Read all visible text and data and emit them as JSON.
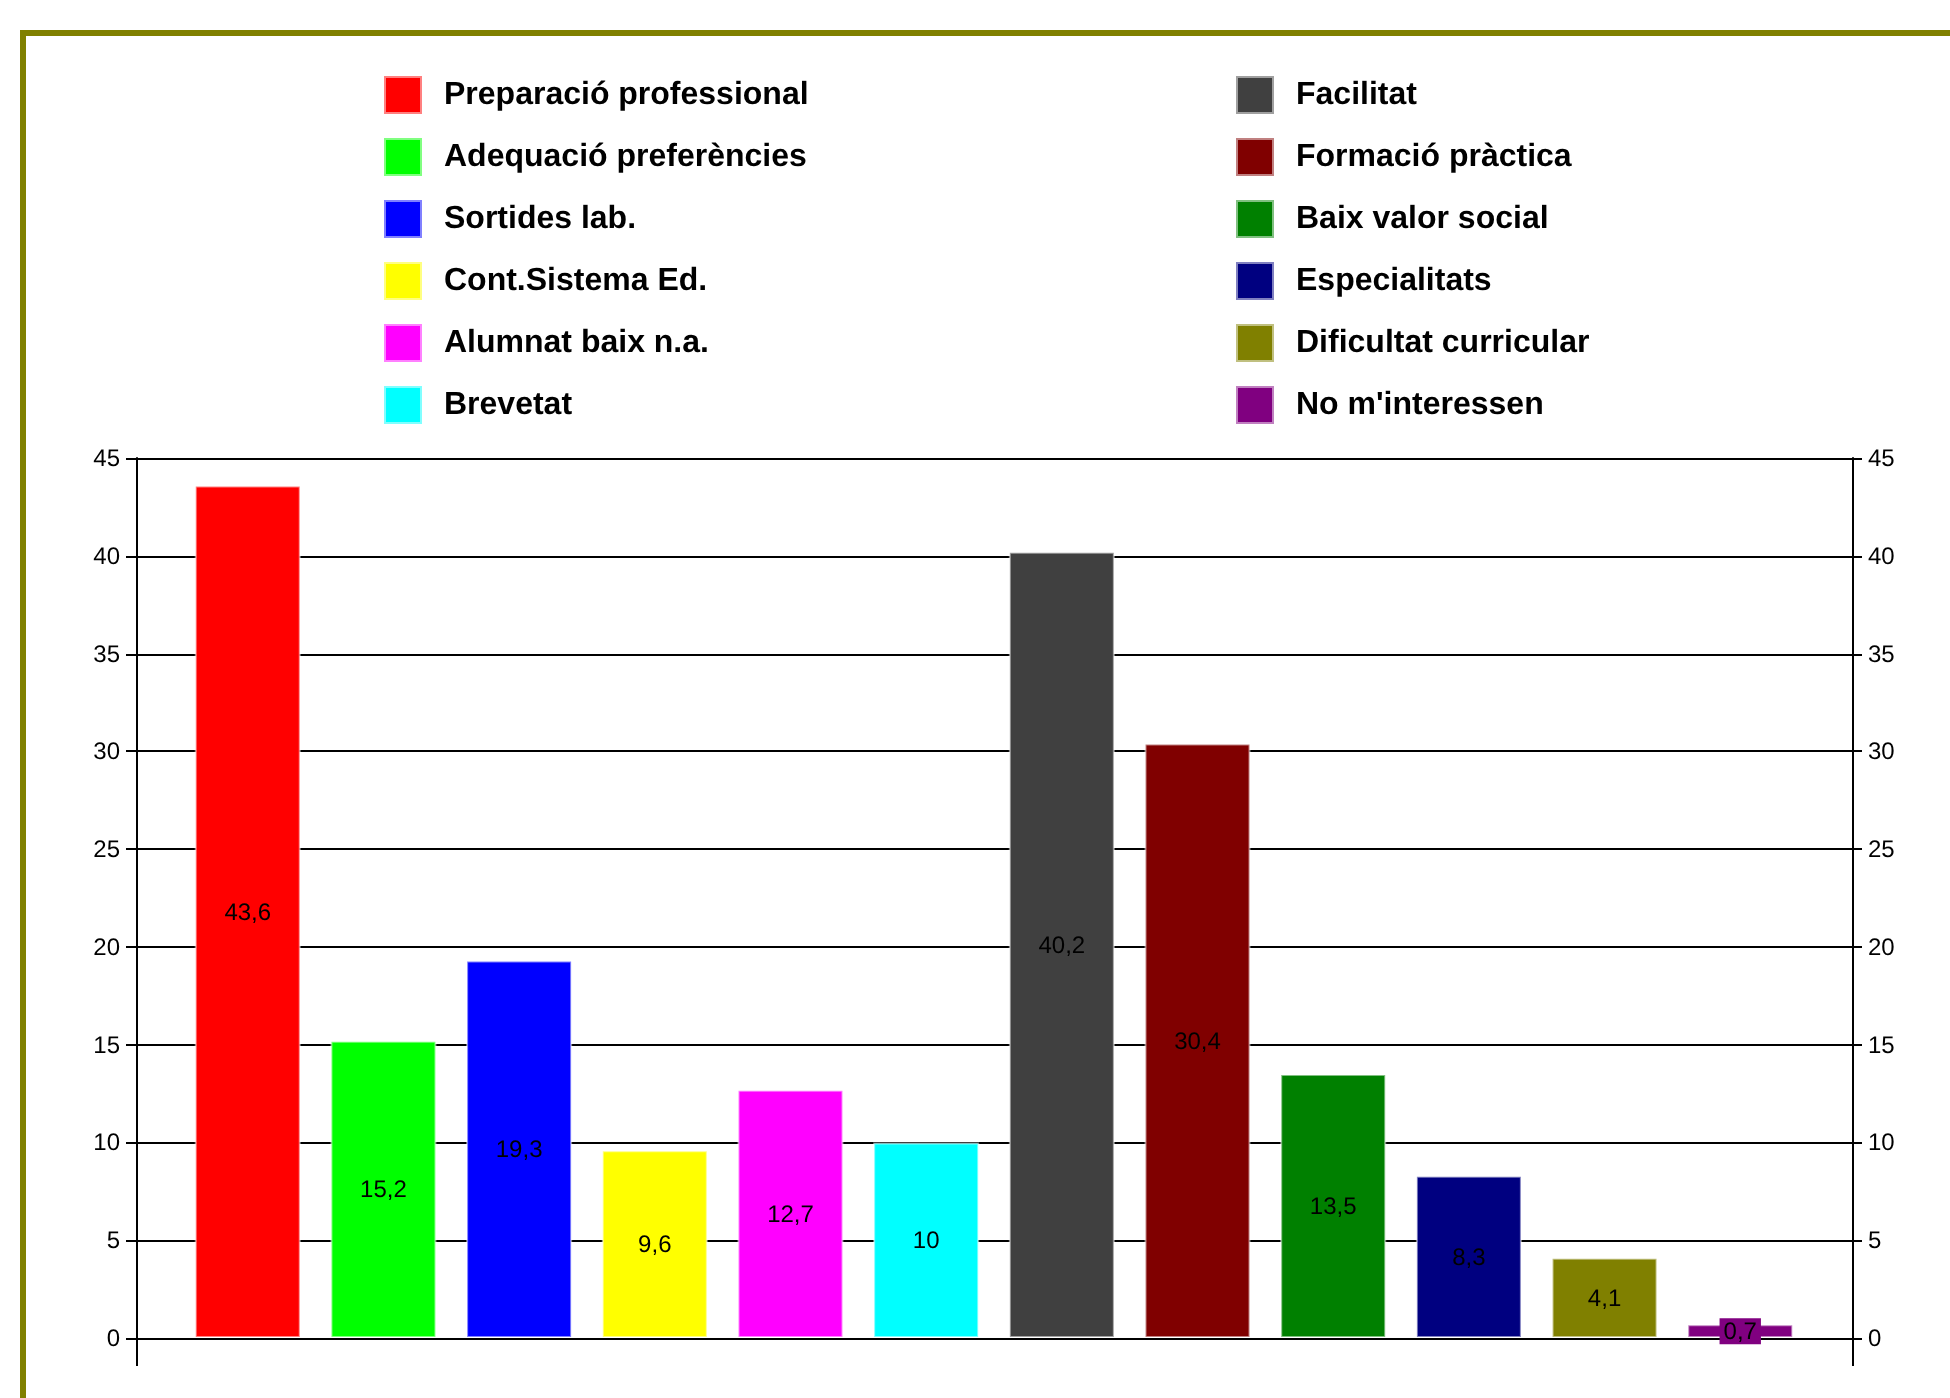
{
  "chart_data": {
    "type": "bar",
    "categories": [
      null
    ],
    "series": [
      {
        "name": "Preparació professional",
        "color": "#ff0000",
        "values": [
          43.6
        ],
        "value_labels": [
          "43,6"
        ]
      },
      {
        "name": "Adequació preferències",
        "color": "#00ff00",
        "values": [
          15.2
        ],
        "value_labels": [
          "15,2"
        ]
      },
      {
        "name": "Sortides lab.",
        "color": "#0000ff",
        "values": [
          19.3
        ],
        "value_labels": [
          "19,3"
        ]
      },
      {
        "name": "Cont.Sistema Ed.",
        "color": "#ffff00",
        "values": [
          9.6
        ],
        "value_labels": [
          "9,6"
        ]
      },
      {
        "name": "Alumnat baix n.a.",
        "color": "#ff00ff",
        "values": [
          12.7
        ],
        "value_labels": [
          "12,7"
        ]
      },
      {
        "name": "Brevetat",
        "color": "#00ffff",
        "values": [
          10
        ],
        "value_labels": [
          "10"
        ]
      },
      {
        "name": "Facilitat",
        "color": "#404040",
        "values": [
          40.2
        ],
        "value_labels": [
          "40,2"
        ]
      },
      {
        "name": "Formació pràctica",
        "color": "#800000",
        "values": [
          30.4
        ],
        "value_labels": [
          "30,4"
        ]
      },
      {
        "name": "Baix valor social",
        "color": "#008000",
        "values": [
          13.5
        ],
        "value_labels": [
          "13,5"
        ]
      },
      {
        "name": "Especialitats",
        "color": "#000080",
        "values": [
          8.3
        ],
        "value_labels": [
          "8,3"
        ]
      },
      {
        "name": "Dificultat curricular",
        "color": "#808000",
        "values": [
          4.1
        ],
        "value_labels": [
          "4,1"
        ]
      },
      {
        "name": "No m'interessen",
        "color": "#800080",
        "values": [
          0.7
        ],
        "value_labels": [
          "0,7"
        ]
      }
    ],
    "ylim": [
      0,
      45
    ],
    "yticks": [
      0,
      5,
      10,
      15,
      20,
      25,
      30,
      35,
      40,
      45
    ],
    "y2lim": [
      0,
      45
    ],
    "y2ticks": [
      0,
      5,
      10,
      15,
      20,
      25,
      30,
      35,
      40,
      45
    ],
    "grid": "y",
    "legend": "top"
  }
}
